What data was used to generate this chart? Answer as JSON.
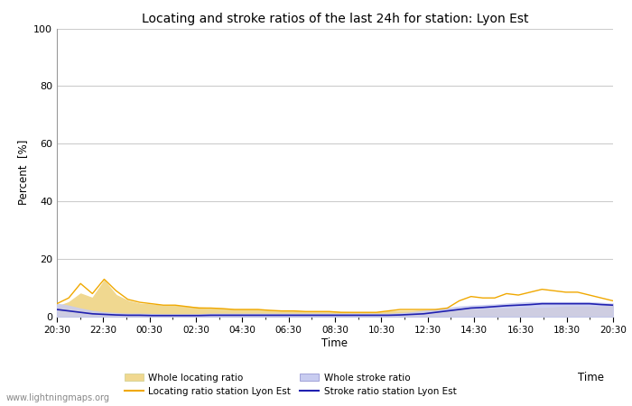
{
  "title": "Locating and stroke ratios of the last 24h for station: Lyon Est",
  "xlabel": "Time",
  "ylabel": "Percent  [%]",
  "ylim": [
    0,
    100
  ],
  "yticks": [
    0,
    20,
    40,
    60,
    80,
    100
  ],
  "xtick_labels": [
    "20:30",
    "22:30",
    "00:30",
    "02:30",
    "04:30",
    "06:30",
    "08:30",
    "10:30",
    "12:30",
    "14:30",
    "16:30",
    "18:30",
    "20:30"
  ],
  "watermark": "www.lightningmaps.org",
  "bg_color": "#ffffff",
  "grid_color": "#cccccc",
  "locating_line_color": "#f0a800",
  "locating_fill_color": "#f0d890",
  "stroke_line_color": "#2020b0",
  "stroke_fill_color": "#c8ccf0",
  "whole_locating": [
    3.5,
    5.0,
    8.0,
    6.5,
    12.5,
    7.5,
    5.5,
    4.5,
    4.2,
    3.8,
    3.8,
    3.5,
    3.2,
    3.0,
    2.8,
    2.5,
    2.5,
    2.5,
    2.2,
    2.0,
    2.0,
    1.8,
    1.8,
    1.8,
    1.6,
    1.5,
    1.5,
    1.5,
    1.8,
    2.0,
    2.0,
    2.2,
    2.2,
    2.5,
    2.5,
    2.5,
    2.5,
    2.8,
    2.8,
    3.0,
    3.0,
    3.0,
    3.2,
    3.5,
    3.5,
    3.5,
    3.5,
    4.0
  ],
  "locating_station": [
    4.5,
    6.5,
    11.5,
    8.0,
    13.0,
    9.0,
    6.0,
    5.0,
    4.5,
    4.0,
    4.0,
    3.5,
    3.0,
    3.0,
    2.8,
    2.5,
    2.5,
    2.5,
    2.2,
    2.0,
    2.0,
    1.8,
    1.8,
    1.8,
    1.5,
    1.5,
    1.5,
    1.5,
    2.0,
    2.5,
    2.5,
    2.5,
    2.5,
    3.0,
    5.5,
    7.0,
    6.5,
    6.5,
    8.0,
    7.5,
    8.5,
    9.5,
    9.0,
    8.5,
    8.5,
    7.5,
    6.5,
    5.5
  ],
  "whole_stroke": [
    4.5,
    3.8,
    2.8,
    2.0,
    1.5,
    1.2,
    1.0,
    1.0,
    0.9,
    0.8,
    0.8,
    0.8,
    0.8,
    1.0,
    1.0,
    1.0,
    1.0,
    1.0,
    1.0,
    1.0,
    1.0,
    1.0,
    1.0,
    1.0,
    1.0,
    1.0,
    1.0,
    1.0,
    1.0,
    1.2,
    1.5,
    2.0,
    2.5,
    3.0,
    3.5,
    3.8,
    4.0,
    4.2,
    4.5,
    4.8,
    5.0,
    5.0,
    5.0,
    5.0,
    5.0,
    5.0,
    4.8,
    4.5
  ],
  "stroke_station": [
    2.5,
    2.0,
    1.5,
    1.0,
    0.8,
    0.6,
    0.5,
    0.5,
    0.4,
    0.4,
    0.4,
    0.4,
    0.4,
    0.5,
    0.5,
    0.5,
    0.5,
    0.5,
    0.5,
    0.5,
    0.5,
    0.5,
    0.5,
    0.5,
    0.5,
    0.5,
    0.5,
    0.5,
    0.5,
    0.6,
    0.8,
    1.0,
    1.5,
    2.0,
    2.5,
    3.0,
    3.2,
    3.5,
    3.8,
    4.0,
    4.2,
    4.5,
    4.5,
    4.5,
    4.5,
    4.5,
    4.2,
    4.0
  ]
}
